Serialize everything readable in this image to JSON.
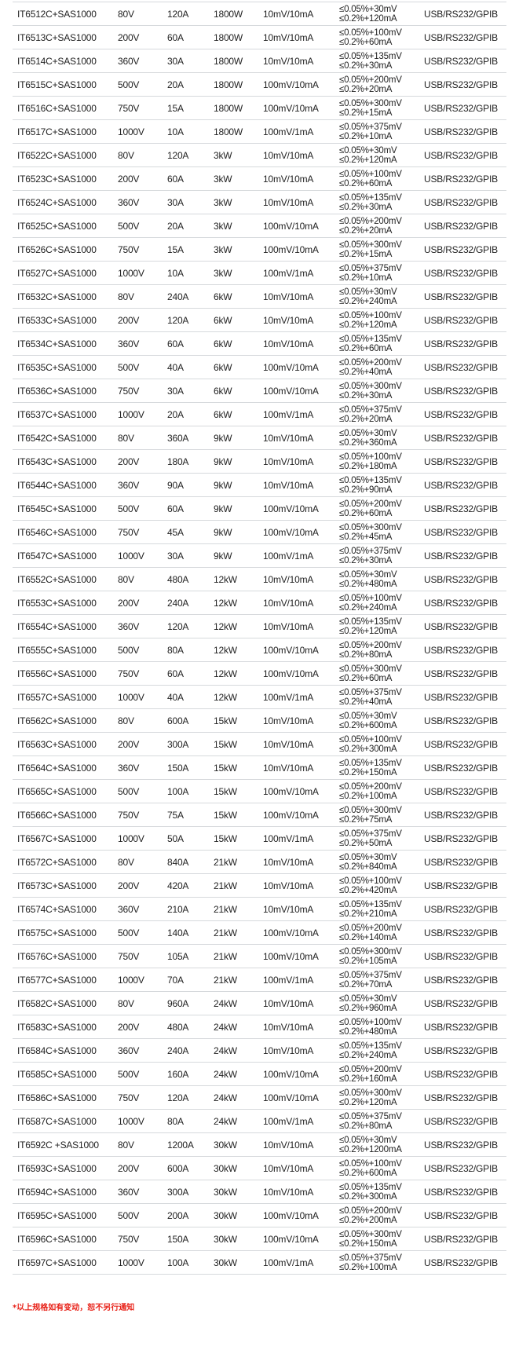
{
  "table": {
    "rows": [
      [
        "IT6512C+SAS1000",
        "80V",
        "120A",
        "1800W",
        "10mV/10mA",
        "≤0.05%+30mV",
        "≤0.2%+120mA",
        "USB/RS232/GPIB"
      ],
      [
        "IT6513C+SAS1000",
        "200V",
        "60A",
        "1800W",
        "10mV/10mA",
        "≤0.05%+100mV",
        "≤0.2%+60mA",
        "USB/RS232/GPIB"
      ],
      [
        "IT6514C+SAS1000",
        "360V",
        "30A",
        "1800W",
        "10mV/10mA",
        "≤0.05%+135mV",
        "≤0.2%+30mA",
        "USB/RS232/GPIB"
      ],
      [
        "IT6515C+SAS1000",
        "500V",
        "20A",
        "1800W",
        "100mV/10mA",
        "≤0.05%+200mV",
        "≤0.2%+20mA",
        "USB/RS232/GPIB"
      ],
      [
        "IT6516C+SAS1000",
        "750V",
        "15A",
        "1800W",
        "100mV/10mA",
        "≤0.05%+300mV",
        "≤0.2%+15mA",
        "USB/RS232/GPIB"
      ],
      [
        "IT6517C+SAS1000",
        "1000V",
        "10A",
        "1800W",
        "100mV/1mA",
        "≤0.05%+375mV",
        "≤0.2%+10mA",
        "USB/RS232/GPIB"
      ],
      [
        "IT6522C+SAS1000",
        "80V",
        "120A",
        "3kW",
        "10mV/10mA",
        "≤0.05%+30mV",
        "≤0.2%+120mA",
        "USB/RS232/GPIB"
      ],
      [
        "IT6523C+SAS1000",
        "200V",
        "60A",
        "3kW",
        "10mV/10mA",
        "≤0.05%+100mV",
        "≤0.2%+60mA",
        "USB/RS232/GPIB"
      ],
      [
        "IT6524C+SAS1000",
        "360V",
        "30A",
        "3kW",
        "10mV/10mA",
        "≤0.05%+135mV",
        "≤0.2%+30mA",
        "USB/RS232/GPIB"
      ],
      [
        "IT6525C+SAS1000",
        "500V",
        "20A",
        "3kW",
        "100mV/10mA",
        "≤0.05%+200mV",
        "≤0.2%+20mA",
        "USB/RS232/GPIB"
      ],
      [
        "IT6526C+SAS1000",
        "750V",
        "15A",
        "3kW",
        "100mV/10mA",
        "≤0.05%+300mV",
        "≤0.2%+15mA",
        "USB/RS232/GPIB"
      ],
      [
        "IT6527C+SAS1000",
        "1000V",
        "10A",
        "3kW",
        "100mV/1mA",
        "≤0.05%+375mV",
        "≤0.2%+10mA",
        "USB/RS232/GPIB"
      ],
      [
        "IT6532C+SAS1000",
        "80V",
        "240A",
        "6kW",
        "10mV/10mA",
        "≤0.05%+30mV",
        "≤0.2%+240mA",
        "USB/RS232/GPIB"
      ],
      [
        "IT6533C+SAS1000",
        "200V",
        "120A",
        "6kW",
        "10mV/10mA",
        "≤0.05%+100mV",
        "≤0.2%+120mA",
        "USB/RS232/GPIB"
      ],
      [
        "IT6534C+SAS1000",
        "360V",
        "60A",
        "6kW",
        "10mV/10mA",
        "≤0.05%+135mV",
        "≤0.2%+60mA",
        "USB/RS232/GPIB"
      ],
      [
        "IT6535C+SAS1000",
        "500V",
        "40A",
        "6kW",
        "100mV/10mA",
        "≤0.05%+200mV",
        "≤0.2%+40mA",
        "USB/RS232/GPIB"
      ],
      [
        "IT6536C+SAS1000",
        "750V",
        "30A",
        "6kW",
        "100mV/10mA",
        "≤0.05%+300mV",
        "≤0.2%+30mA",
        "USB/RS232/GPIB"
      ],
      [
        "IT6537C+SAS1000",
        "1000V",
        "20A",
        "6kW",
        "100mV/1mA",
        "≤0.05%+375mV",
        "≤0.2%+20mA",
        "USB/RS232/GPIB"
      ],
      [
        "IT6542C+SAS1000",
        "80V",
        "360A",
        "9kW",
        "10mV/10mA",
        "≤0.05%+30mV",
        "≤0.2%+360mA",
        "USB/RS232/GPIB"
      ],
      [
        "IT6543C+SAS1000",
        "200V",
        "180A",
        "9kW",
        "10mV/10mA",
        "≤0.05%+100mV",
        "≤0.2%+180mA",
        "USB/RS232/GPIB"
      ],
      [
        "IT6544C+SAS1000",
        "360V",
        "90A",
        "9kW",
        "10mV/10mA",
        "≤0.05%+135mV",
        "≤0.2%+90mA",
        "USB/RS232/GPIB"
      ],
      [
        "IT6545C+SAS1000",
        "500V",
        "60A",
        "9kW",
        "100mV/10mA",
        "≤0.05%+200mV",
        "≤0.2%+60mA",
        "USB/RS232/GPIB"
      ],
      [
        "IT6546C+SAS1000",
        "750V",
        "45A",
        "9kW",
        "100mV/10mA",
        "≤0.05%+300mV",
        "≤0.2%+45mA",
        "USB/RS232/GPIB"
      ],
      [
        "IT6547C+SAS1000",
        "1000V",
        "30A",
        "9kW",
        "100mV/1mA",
        "≤0.05%+375mV",
        "≤0.2%+30mA",
        "USB/RS232/GPIB"
      ],
      [
        "IT6552C+SAS1000",
        "80V",
        "480A",
        "12kW",
        "10mV/10mA",
        "≤0.05%+30mV",
        "≤0.2%+480mA",
        "USB/RS232/GPIB"
      ],
      [
        "IT6553C+SAS1000",
        "200V",
        "240A",
        "12kW",
        "10mV/10mA",
        "≤0.05%+100mV",
        "≤0.2%+240mA",
        "USB/RS232/GPIB"
      ],
      [
        "IT6554C+SAS1000",
        "360V",
        "120A",
        "12kW",
        "10mV/10mA",
        "≤0.05%+135mV",
        "≤0.2%+120mA",
        "USB/RS232/GPIB"
      ],
      [
        "IT6555C+SAS1000",
        "500V",
        "80A",
        "12kW",
        "100mV/10mA",
        "≤0.05%+200mV",
        "≤0.2%+80mA",
        "USB/RS232/GPIB"
      ],
      [
        "IT6556C+SAS1000",
        "750V",
        "60A",
        "12kW",
        "100mV/10mA",
        "≤0.05%+300mV",
        "≤0.2%+60mA",
        "USB/RS232/GPIB"
      ],
      [
        "IT6557C+SAS1000",
        "1000V",
        "40A",
        "12kW",
        "100mV/1mA",
        "≤0.05%+375mV",
        "≤0.2%+40mA",
        "USB/RS232/GPIB"
      ],
      [
        "IT6562C+SAS1000",
        "80V",
        "600A",
        "15kW",
        "10mV/10mA",
        "≤0.05%+30mV",
        "≤0.2%+600mA",
        "USB/RS232/GPIB"
      ],
      [
        "IT6563C+SAS1000",
        "200V",
        "300A",
        "15kW",
        "10mV/10mA",
        "≤0.05%+100mV",
        "≤0.2%+300mA",
        "USB/RS232/GPIB"
      ],
      [
        "IT6564C+SAS1000",
        "360V",
        "150A",
        "15kW",
        "10mV/10mA",
        "≤0.05%+135mV",
        "≤0.2%+150mA",
        "USB/RS232/GPIB"
      ],
      [
        "IT6565C+SAS1000",
        "500V",
        "100A",
        "15kW",
        "100mV/10mA",
        "≤0.05%+200mV",
        "≤0.2%+100mA",
        "USB/RS232/GPIB"
      ],
      [
        "IT6566C+SAS1000",
        "750V",
        "75A",
        "15kW",
        "100mV/10mA",
        "≤0.05%+300mV",
        "≤0.2%+75mA",
        "USB/RS232/GPIB"
      ],
      [
        "IT6567C+SAS1000",
        "1000V",
        "50A",
        "15kW",
        "100mV/1mA",
        "≤0.05%+375mV",
        "≤0.2%+50mA",
        "USB/RS232/GPIB"
      ],
      [
        "IT6572C+SAS1000",
        "80V",
        "840A",
        "21kW",
        "10mV/10mA",
        "≤0.05%+30mV",
        "≤0.2%+840mA",
        "USB/RS232/GPIB"
      ],
      [
        "IT6573C+SAS1000",
        "200V",
        "420A",
        "21kW",
        "10mV/10mA",
        "≤0.05%+100mV",
        "≤0.2%+420mA",
        "USB/RS232/GPIB"
      ],
      [
        "IT6574C+SAS1000",
        "360V",
        "210A",
        "21kW",
        "10mV/10mA",
        "≤0.05%+135mV",
        "≤0.2%+210mA",
        "USB/RS232/GPIB"
      ],
      [
        "IT6575C+SAS1000",
        "500V",
        "140A",
        "21kW",
        "100mV/10mA",
        "≤0.05%+200mV",
        "≤0.2%+140mA",
        "USB/RS232/GPIB"
      ],
      [
        "IT6576C+SAS1000",
        "750V",
        "105A",
        "21kW",
        "100mV/10mA",
        "≤0.05%+300mV",
        "≤0.2%+105mA",
        "USB/RS232/GPIB"
      ],
      [
        "IT6577C+SAS1000",
        "1000V",
        "70A",
        "21kW",
        "100mV/1mA",
        "≤0.05%+375mV",
        "≤0.2%+70mA",
        "USB/RS232/GPIB"
      ],
      [
        "IT6582C+SAS1000",
        "80V",
        "960A",
        "24kW",
        "10mV/10mA",
        "≤0.05%+30mV",
        "≤0.2%+960mA",
        "USB/RS232/GPIB"
      ],
      [
        "IT6583C+SAS1000",
        "200V",
        "480A",
        "24kW",
        "10mV/10mA",
        "≤0.05%+100mV",
        "≤0.2%+480mA",
        "USB/RS232/GPIB"
      ],
      [
        "IT6584C+SAS1000",
        "360V",
        "240A",
        "24kW",
        "10mV/10mA",
        "≤0.05%+135mV",
        "≤0.2%+240mA",
        "USB/RS232/GPIB"
      ],
      [
        "IT6585C+SAS1000",
        "500V",
        "160A",
        "24kW",
        "100mV/10mA",
        "≤0.05%+200mV",
        "≤0.2%+160mA",
        "USB/RS232/GPIB"
      ],
      [
        "IT6586C+SAS1000",
        "750V",
        "120A",
        "24kW",
        "100mV/10mA",
        "≤0.05%+300mV",
        "≤0.2%+120mA",
        "USB/RS232/GPIB"
      ],
      [
        "IT6587C+SAS1000",
        "1000V",
        "80A",
        "24kW",
        "100mV/1mA",
        "≤0.05%+375mV",
        "≤0.2%+80mA",
        "USB/RS232/GPIB"
      ],
      [
        "IT6592C +SAS1000",
        "80V",
        "1200A",
        "30kW",
        "10mV/10mA",
        "≤0.05%+30mV",
        "≤0.2%+1200mA",
        "USB/RS232/GPIB"
      ],
      [
        "IT6593C+SAS1000",
        "200V",
        "600A",
        "30kW",
        "10mV/10mA",
        "≤0.05%+100mV",
        "≤0.2%+600mA",
        "USB/RS232/GPIB"
      ],
      [
        "IT6594C+SAS1000",
        "360V",
        "300A",
        "30kW",
        "10mV/10mA",
        "≤0.05%+135mV",
        "≤0.2%+300mA",
        "USB/RS232/GPIB"
      ],
      [
        "IT6595C+SAS1000",
        "500V",
        "200A",
        "30kW",
        "100mV/10mA",
        "≤0.05%+200mV",
        "≤0.2%+200mA",
        "USB/RS232/GPIB"
      ],
      [
        "IT6596C+SAS1000",
        "750V",
        "150A",
        "30kW",
        "100mV/10mA",
        "≤0.05%+300mV",
        "≤0.2%+150mA",
        "USB/RS232/GPIB"
      ],
      [
        "IT6597C+SAS1000",
        "1000V",
        "100A",
        "30kW",
        "100mV/1mA",
        "≤0.05%+375mV",
        "≤0.2%+100mA",
        "USB/RS232/GPIB"
      ]
    ]
  },
  "footnote": "*以上规格如有变动，恕不另行通知",
  "colors": {
    "footnote": "#e8231a",
    "row_divider": "#d6d9dc"
  }
}
